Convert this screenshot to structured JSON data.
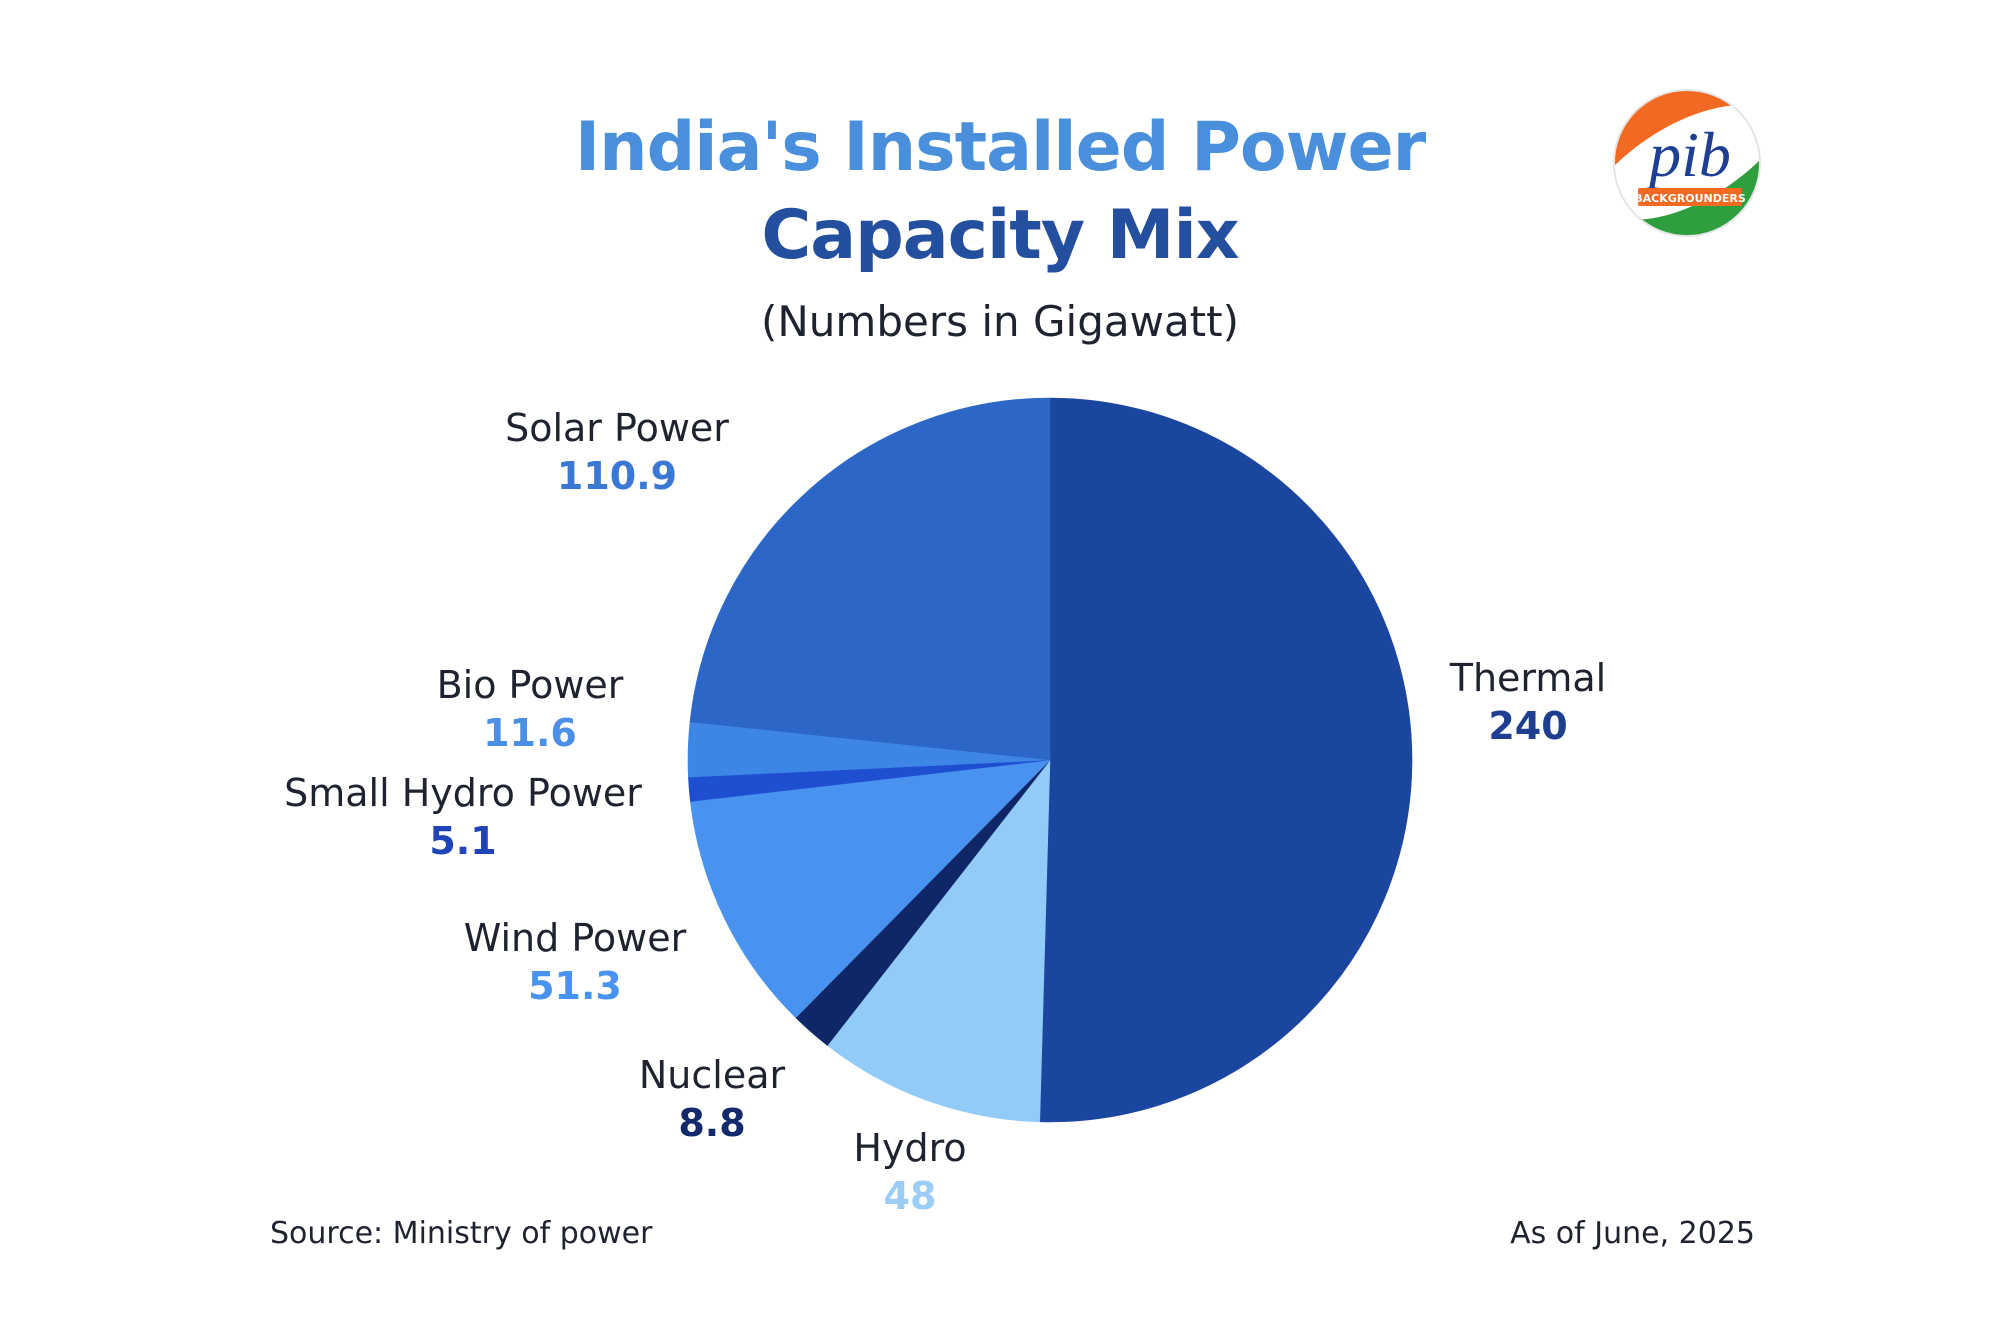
{
  "title_line_1": "India's Installed Power",
  "title_line_2": "Capacity Mix",
  "subtitle": "(Numbers in Gigawatt)",
  "logo": {
    "text": "pib",
    "tagline": "BACKGROUNDERS",
    "colors": {
      "saffron": "#f26a21",
      "green": "#2e9e3e",
      "blue": "#1f3f93"
    }
  },
  "footer": {
    "source": "Source: Ministry of power",
    "date": "As of June, 2025"
  },
  "chart_data": {
    "type": "pie",
    "start": "12 o'clock",
    "direction": "clockwise",
    "slices": [
      {
        "name": "Thermal",
        "value": 240,
        "value_label": "240",
        "color": "#1b46a0",
        "value_color": "#1e3f8f"
      },
      {
        "name": "Hydro",
        "value": 48,
        "value_label": "48",
        "color": "#93cbf8",
        "value_color": "#9ccdf7"
      },
      {
        "name": "Nuclear",
        "value": 8.8,
        "value_label": "8.8",
        "color": "#0f2768",
        "value_color": "#12296b"
      },
      {
        "name": "Wind Power",
        "value": 51.3,
        "value_label": "51.3",
        "color": "#4a92f0",
        "value_color": "#4a92f0"
      },
      {
        "name": "Small Hydro Power",
        "value": 5.1,
        "value_label": "5.1",
        "color": "#1f4fd1",
        "value_color": "#1f44b8"
      },
      {
        "name": "Bio Power",
        "value": 11.6,
        "value_label": "11.6",
        "color": "#3d86e6",
        "value_color": "#4b8fe6"
      },
      {
        "name": "Solar Power",
        "value": 110.9,
        "value_label": "110.9",
        "color": "#2c66c6",
        "value_color": "#3a78d4"
      }
    ]
  }
}
